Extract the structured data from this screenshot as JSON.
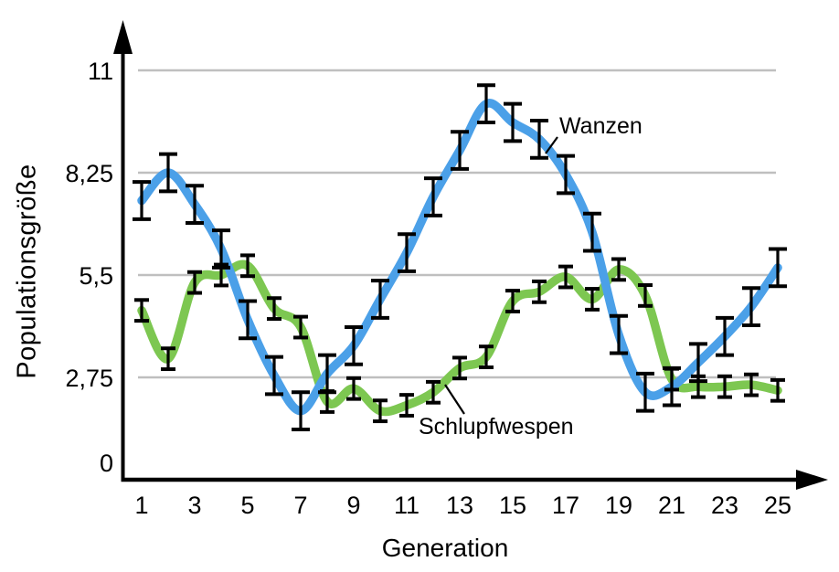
{
  "chart_data": {
    "type": "line",
    "title": "",
    "xlabel": "Generation",
    "ylabel": "Populationsgröße",
    "x": [
      1,
      2,
      3,
      4,
      5,
      6,
      7,
      8,
      9,
      10,
      11,
      12,
      13,
      14,
      15,
      16,
      17,
      18,
      19,
      20,
      21,
      22,
      23,
      24,
      25
    ],
    "x_tick_labels": [
      "1",
      "3",
      "5",
      "7",
      "9",
      "11",
      "13",
      "15",
      "17",
      "19",
      "21",
      "23",
      "25"
    ],
    "x_tick_values": [
      1,
      3,
      5,
      7,
      9,
      11,
      13,
      15,
      17,
      19,
      21,
      23,
      25
    ],
    "y_ticks": [
      {
        "label": "0",
        "value": 0
      },
      {
        "label": "2,75",
        "value": 2.75
      },
      {
        "label": "5,5",
        "value": 5.5
      },
      {
        "label": "8,25",
        "value": 8.25
      },
      {
        "label": "11",
        "value": 11
      }
    ],
    "xlim": [
      0,
      26
    ],
    "ylim": [
      0,
      12.3
    ],
    "grid": "horizontal gridlines at 2.75, 5.5, 8.25 and 11",
    "legend_position": "inline labels with leader lines pointing at curves",
    "series": [
      {
        "name": "Wanzen",
        "color": "#4ba0e8",
        "error_bar": 0.5,
        "values": [
          7.5,
          8.25,
          7.4,
          6.2,
          4.3,
          2.8,
          1.85,
          2.85,
          3.6,
          4.85,
          6.1,
          7.6,
          8.85,
          10.1,
          9.6,
          9.15,
          8.2,
          6.65,
          3.9,
          2.35,
          2.5,
          3.15,
          3.85,
          4.65,
          5.7
        ]
      },
      {
        "name": "Schlupfwespen",
        "color": "#7dc751",
        "error_bar": 0.28,
        "values": [
          4.55,
          3.25,
          5.3,
          5.5,
          5.75,
          4.6,
          4.1,
          2.1,
          2.45,
          1.85,
          2.0,
          2.35,
          3.0,
          3.3,
          4.8,
          5.05,
          5.45,
          4.85,
          5.65,
          4.95,
          2.7,
          2.5,
          2.5,
          2.55,
          2.4
        ]
      }
    ],
    "style": {
      "gridline_color": "#bfbfbf",
      "axis_color": "#000000",
      "errorbar_color": "#000000"
    }
  }
}
